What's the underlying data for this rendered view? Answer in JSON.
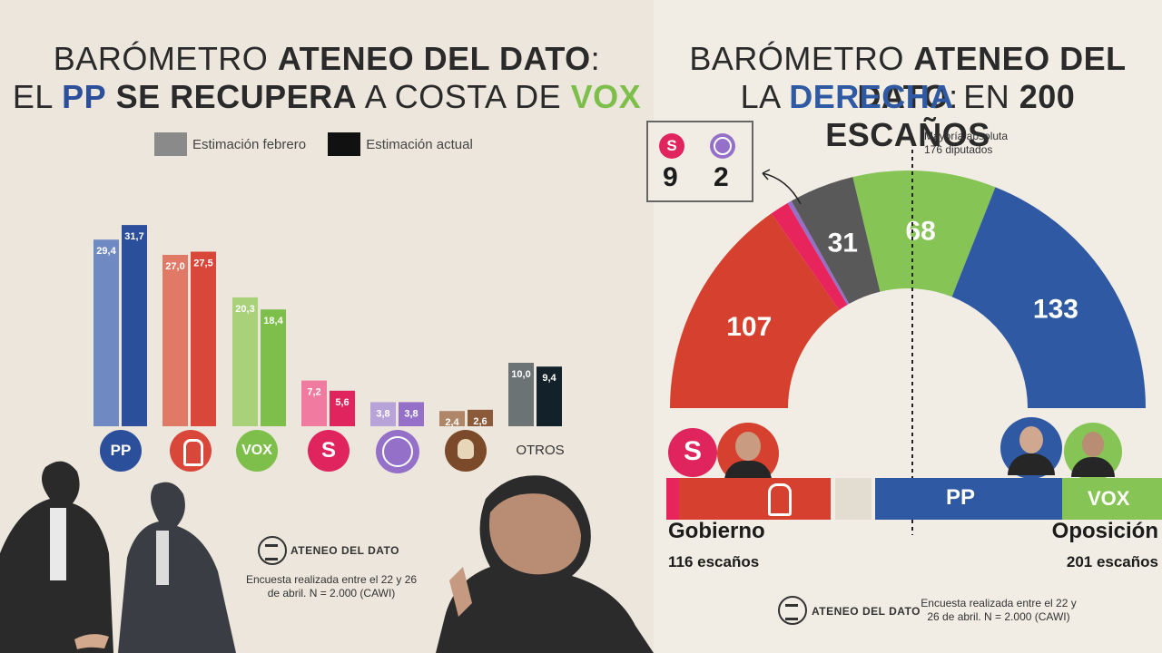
{
  "left": {
    "title_line1": [
      "BARÓMETRO ",
      "ATENEO DEL DATO",
      ":"
    ],
    "title_line2": [
      "EL ",
      "PP",
      " ",
      "SE RECUPERA",
      " A COSTA DE ",
      "VOX"
    ],
    "legend": [
      {
        "label": "Estimación febrero",
        "color": "#8a8a8a"
      },
      {
        "label": "Estimación actual",
        "color": "#111111"
      }
    ],
    "others_label": "OTROS",
    "brand": "ATENEO DEL DATO",
    "note": "Encuesta realizada entre el 22 y 26 de abril. N = 2.000 (CAWI)"
  },
  "chart_data": [
    {
      "type": "bar",
      "series": [
        {
          "name": "Estimación febrero",
          "values": [
            29.4,
            27.0,
            20.3,
            7.2,
            3.8,
            2.4,
            10.0
          ]
        },
        {
          "name": "Estimación actual",
          "values": [
            31.7,
            27.5,
            18.4,
            5.6,
            3.8,
            2.6,
            9.4
          ]
        }
      ],
      "categories": [
        "PP",
        "PSOE",
        "VOX",
        "Sumar",
        "Podemos",
        "SALF",
        "OTROS"
      ],
      "labels_feb": [
        "29,4",
        "27,0",
        "20,3",
        "7,2",
        "3,8",
        "2,4",
        "10,0"
      ],
      "labels_now": [
        "31,7",
        "27,5",
        "18,4",
        "5,6",
        "3,8",
        "2,6",
        "9,4"
      ],
      "colors_feb": [
        "#6f8ac2",
        "#e07a66",
        "#a8d17a",
        "#f07aa0",
        "#b8a3d8",
        "#b08668",
        "#6c7375"
      ],
      "colors_now": [
        "#2c4f9c",
        "#d9473a",
        "#7dbf4a",
        "#e0245e",
        "#9470c8",
        "#8a5a3a",
        "#12212a"
      ]
    },
    {
      "type": "pie",
      "categories": [
        "PSOE",
        "Sumar",
        "Podemos",
        "Otros",
        "VOX",
        "PP"
      ],
      "values": [
        107,
        9,
        2,
        31,
        68,
        133
      ],
      "labels": [
        "107",
        "",
        "",
        "31",
        "68",
        "133"
      ],
      "colors": [
        "#d6412f",
        "#e8245c",
        "#9470c8",
        "#595959",
        "#86c455",
        "#2f5aa3"
      ]
    }
  ],
  "right": {
    "title_line1": [
      "BARÓMETRO ",
      "ATENEO DEL DATO",
      ":"
    ],
    "title_line2": [
      "LA ",
      "DERECHA",
      " EN ",
      "200 ESCAÑOS"
    ],
    "majority_line1": "Mayoría absoluta",
    "majority_line2": "176 diputados",
    "callout_values": [
      "9",
      "2"
    ],
    "gov_label": "Gobierno",
    "gov_seats": "116 escaños",
    "opp_label": "Oposición",
    "opp_seats": "201 escaños",
    "pp_bar_label": "PP",
    "vox_bar_label": "VOX",
    "brand": "ATENEO DEL DATO",
    "note": "Encuesta realizada entre el 22 y 26 de abril. N = 2.000 (CAWI)"
  }
}
